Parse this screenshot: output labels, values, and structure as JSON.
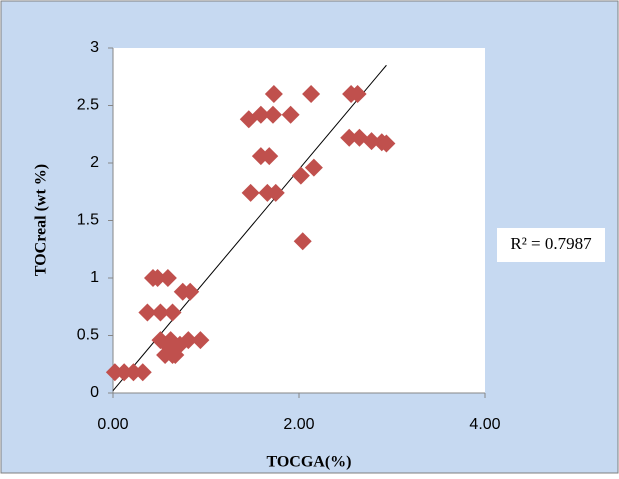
{
  "chart_data": {
    "type": "scatter",
    "x_label": "TOCGA(%)",
    "y_label": "TOCreal (wt %)",
    "xlim": [
      0,
      4
    ],
    "ylim": [
      0,
      3
    ],
    "xticks": [
      {
        "value": 0,
        "label": "0.00"
      },
      {
        "value": 2,
        "label": "2.00"
      },
      {
        "value": 4,
        "label": "4.00"
      }
    ],
    "yticks": [
      0,
      0.5,
      1,
      1.5,
      2,
      2.5,
      3
    ],
    "grid": false,
    "series": [
      {
        "color": "#c0504d",
        "x": [
          0.02,
          0.12,
          0.22,
          0.32,
          0.37,
          0.51,
          0.64,
          0.43,
          0.48,
          0.59,
          0.75,
          0.83,
          0.51,
          0.56,
          0.62,
          0.67,
          0.72,
          0.81,
          0.94,
          0.64,
          0.6,
          1.46,
          1.59,
          1.72,
          1.91,
          1.73,
          2.13,
          2.56,
          2.63,
          1.59,
          1.68,
          1.48,
          1.66,
          1.75,
          2.04,
          2.02,
          2.16,
          2.54,
          2.65,
          2.78,
          2.89,
          2.94
        ],
        "values": [
          0.18,
          0.18,
          0.18,
          0.18,
          0.7,
          0.7,
          0.7,
          1.0,
          1.0,
          1.0,
          0.88,
          0.88,
          0.46,
          0.33,
          0.46,
          0.33,
          0.42,
          0.46,
          0.46,
          0.33,
          0.4,
          2.38,
          2.42,
          2.42,
          2.42,
          2.6,
          2.6,
          2.6,
          2.6,
          2.06,
          2.06,
          1.74,
          1.74,
          1.74,
          1.32,
          1.89,
          1.96,
          2.22,
          2.22,
          2.19,
          2.18,
          2.17
        ]
      }
    ],
    "trendline": {
      "x": [
        0,
        2.94
      ],
      "y": [
        0.02,
        2.85
      ],
      "label": "R² = 0.7987"
    }
  }
}
